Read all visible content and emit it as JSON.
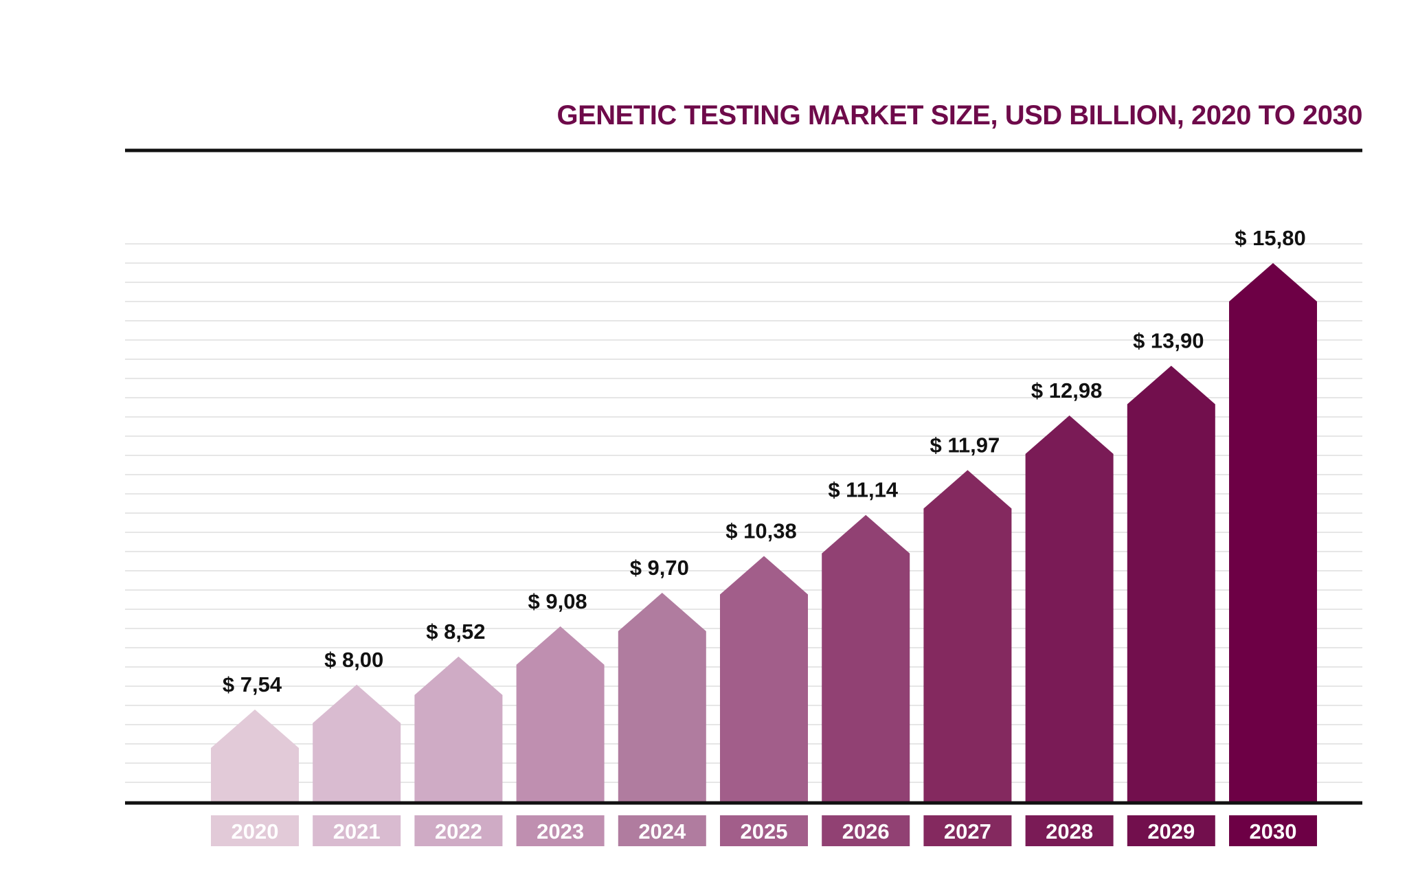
{
  "chart_data": {
    "type": "bar",
    "title": "GENETIC TESTING MARKET SIZE, USD BILLION, 2020 TO 2030",
    "categories": [
      "2020",
      "2021",
      "2022",
      "2023",
      "2024",
      "2025",
      "2026",
      "2027",
      "2028",
      "2029",
      "2030"
    ],
    "values": [
      7.54,
      8.0,
      8.52,
      9.08,
      9.7,
      10.38,
      11.14,
      11.97,
      12.98,
      13.9,
      15.8
    ],
    "value_labels": [
      "$ 7,54",
      "$ 8,00",
      "$ 8,52",
      "$ 9,08",
      "$ 9,70",
      "$ 10,38",
      "$ 11,14",
      "$ 11,97",
      "$ 12,98",
      "$ 13,90",
      "$ 15,80"
    ],
    "xlabel": "",
    "ylabel": "",
    "grid": true,
    "bar_shape": "arrow",
    "colors": {
      "title": "#6e0a4a",
      "axis": "#111111",
      "grid": "#dddddd",
      "bars": [
        "#e2cad8",
        "#d9bbd0",
        "#cfabc5",
        "#bf8fb0",
        "#b07c9f",
        "#a25e8a",
        "#914173",
        "#84295f",
        "#7a1b56",
        "#720f4d",
        "#6d0045"
      ]
    }
  }
}
